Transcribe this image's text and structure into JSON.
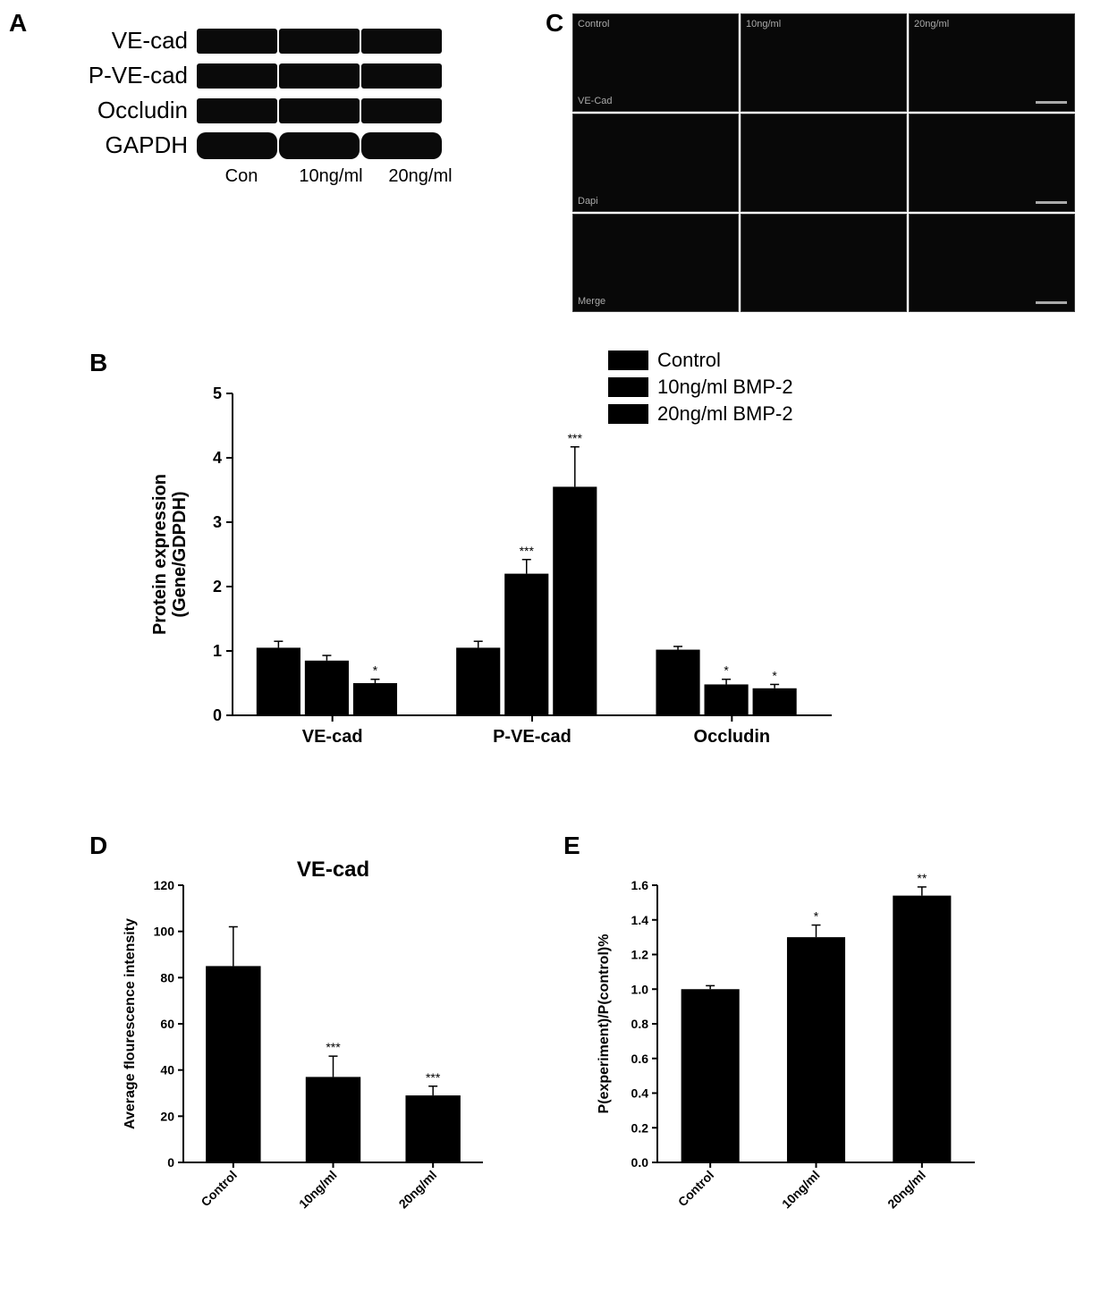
{
  "panel_a": {
    "label": "A",
    "rows": [
      "VE-cad",
      "P-VE-cad",
      "Occludin",
      "GAPDH"
    ],
    "conditions": [
      "Con",
      "10ng/ml",
      "20ng/ml"
    ],
    "band_color": "#0a0a0a"
  },
  "panel_c": {
    "label": "C",
    "col_headers": [
      "Control",
      "10ng/ml",
      "20ng/ml"
    ],
    "row_headers": [
      "VE-Cad",
      "Dapi",
      "Merge"
    ],
    "bg_color": "#080808",
    "text_color": "#aaaaaa"
  },
  "panel_b": {
    "label": "B",
    "type": "grouped_bar",
    "title": "",
    "ylabel": "Protein expression\n(Gene/GDPDH)",
    "ylim": [
      0,
      5
    ],
    "ytick_step": 1,
    "groups": [
      "VE-cad",
      "P-VE-cad",
      "Occludin"
    ],
    "series_names": [
      "Control",
      "10ng/ml BMP-2",
      "20ng/ml BMP-2"
    ],
    "bar_color": "#000000",
    "bg_color": "#ffffff",
    "values": [
      [
        1.05,
        0.85,
        0.5
      ],
      [
        1.05,
        2.2,
        3.55
      ],
      [
        1.02,
        0.48,
        0.42
      ]
    ],
    "errors": [
      [
        0.1,
        0.08,
        0.06
      ],
      [
        0.1,
        0.22,
        0.62
      ],
      [
        0.05,
        0.08,
        0.06
      ]
    ],
    "sig": [
      [
        "",
        "",
        "*"
      ],
      [
        "",
        "***",
        "***"
      ],
      [
        "",
        "*",
        "*"
      ]
    ],
    "label_fontsize": 20,
    "tick_fontsize": 18,
    "bar_width": 0.22,
    "group_gap": 0.4
  },
  "panel_d": {
    "label": "D",
    "type": "bar",
    "title": "VE-cad",
    "ylabel": "Average flourescence intensity",
    "ylim": [
      0,
      120
    ],
    "ytick_step": 20,
    "categories": [
      "Control",
      "10ng/ml",
      "20ng/ml"
    ],
    "values": [
      85,
      37,
      29
    ],
    "errors": [
      17,
      9,
      4
    ],
    "sig": [
      "",
      "***",
      "***"
    ],
    "bar_color": "#000000",
    "bar_width": 0.55,
    "label_fontsize": 16,
    "tick_fontsize": 14,
    "xlabel_rotation": 45
  },
  "panel_e": {
    "label": "E",
    "type": "bar",
    "title": "",
    "ylabel": "P(experiment)/P(control)%",
    "ylim": [
      0.0,
      1.6
    ],
    "ytick_step": 0.2,
    "categories": [
      "Control",
      "10ng/ml",
      "20ng/ml"
    ],
    "values": [
      1.0,
      1.3,
      1.54
    ],
    "errors": [
      0.02,
      0.07,
      0.05
    ],
    "sig": [
      "",
      "*",
      "**"
    ],
    "bar_color": "#000000",
    "bar_width": 0.55,
    "label_fontsize": 16,
    "tick_fontsize": 14,
    "xlabel_rotation": 45
  }
}
